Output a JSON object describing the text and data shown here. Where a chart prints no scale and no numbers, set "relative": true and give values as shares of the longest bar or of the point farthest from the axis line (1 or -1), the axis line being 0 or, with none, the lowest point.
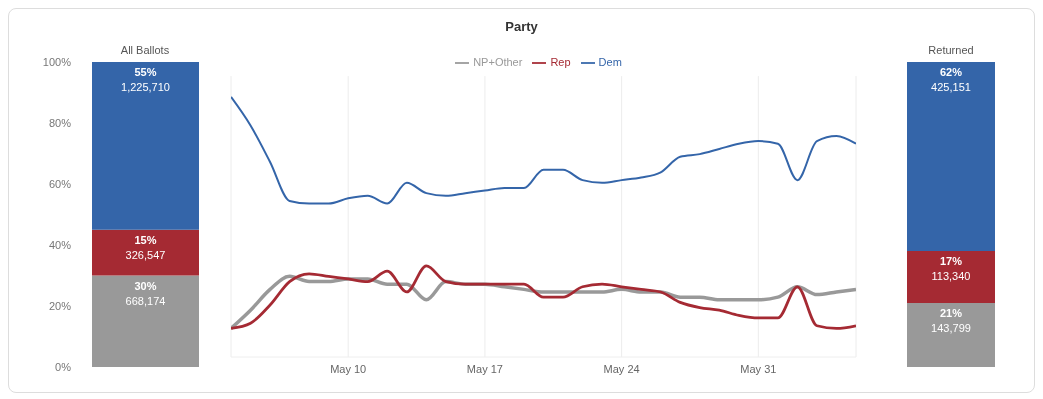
{
  "chart_data": [
    {
      "type": "bar",
      "stacked": true,
      "categories": [
        "All Ballots"
      ],
      "series": [
        {
          "color": "#999999",
          "values": [
            30
          ],
          "value_labels": [
            "30%\n668,174"
          ]
        },
        {
          "color": "#a52a33",
          "values": [
            15
          ],
          "value_labels": [
            "15%\n326,547"
          ]
        },
        {
          "color": "#3465a9",
          "values": [
            55
          ],
          "value_labels": [
            "55%\n1,225,710"
          ]
        }
      ],
      "ylim": [
        0,
        100
      ],
      "yticks": [
        {
          "value": 0,
          "label": "0%"
        },
        {
          "value": 20,
          "label": "20%"
        },
        {
          "value": 40,
          "label": "40%"
        },
        {
          "value": 60,
          "label": "60%"
        },
        {
          "value": 80,
          "label": "80%"
        },
        {
          "value": 100,
          "label": "100%"
        }
      ]
    },
    {
      "type": "line",
      "title": "Party",
      "relative": true,
      "tick_labels": "x",
      "legend": "top",
      "grid": "x",
      "x": [
        "--05-04",
        "--05-05",
        "--05-06",
        "--05-07",
        "--05-08",
        "--05-09",
        "--05-10",
        "--05-11",
        "--05-12",
        "--05-13",
        "--05-14",
        "--05-15",
        "--05-16",
        "--05-17",
        "--05-18",
        "--05-19",
        "--05-20",
        "--05-21",
        "--05-22",
        "--05-23",
        "--05-24",
        "--05-25",
        "--05-26",
        "--05-27",
        "--05-28",
        "--05-29",
        "--05-30",
        "--05-31",
        "--06-01",
        "--06-02",
        "--06-03",
        "--06-04",
        "--06-05"
      ],
      "xlim": [
        "--05-04",
        "--06-05"
      ],
      "xticks": [
        {
          "value": "--05-10",
          "label": "May 10"
        },
        {
          "value": "--05-17",
          "label": "May 17"
        },
        {
          "value": "--05-24",
          "label": "May 24"
        },
        {
          "value": "--05-31",
          "label": "May 31"
        }
      ],
      "series": [
        {
          "name": "NP+Other",
          "color": "#999999",
          "values": [
            0.11,
            0.18,
            0.26,
            0.31,
            0.29,
            0.29,
            0.3,
            0.3,
            0.28,
            0.28,
            0.22,
            0.29,
            0.28,
            0.28,
            0.27,
            0.26,
            0.25,
            0.25,
            0.25,
            0.25,
            0.26,
            0.25,
            0.25,
            0.23,
            0.23,
            0.22,
            0.22,
            0.22,
            0.23,
            0.27,
            0.24,
            0.25,
            0.26
          ]
        },
        {
          "name": "Rep",
          "color": "#a52a33",
          "values": [
            0.11,
            0.13,
            0.2,
            0.29,
            0.32,
            0.31,
            0.3,
            0.29,
            0.33,
            0.25,
            0.35,
            0.29,
            0.28,
            0.28,
            0.28,
            0.28,
            0.23,
            0.23,
            0.27,
            0.28,
            0.27,
            0.26,
            0.25,
            0.21,
            0.19,
            0.18,
            0.16,
            0.15,
            0.15,
            0.27,
            0.12,
            0.11,
            0.12
          ]
        },
        {
          "name": "Dem",
          "color": "#3465a9",
          "values": [
            1,
            0.89,
            0.75,
            0.6,
            0.59,
            0.59,
            0.61,
            0.62,
            0.59,
            0.67,
            0.63,
            0.62,
            0.63,
            0.64,
            0.65,
            0.65,
            0.72,
            0.72,
            0.68,
            0.67,
            0.68,
            0.69,
            0.71,
            0.77,
            0.78,
            0.8,
            0.82,
            0.83,
            0.82,
            0.68,
            0.83,
            0.85,
            0.82
          ]
        }
      ]
    },
    {
      "type": "bar",
      "stacked": true,
      "categories": [
        "Returned"
      ],
      "tick_labels": "x",
      "series": [
        {
          "color": "#999999",
          "values": [
            21
          ],
          "value_labels": [
            "21%\n143,799"
          ]
        },
        {
          "color": "#a52a33",
          "values": [
            17
          ],
          "value_labels": [
            "17%\n113,340"
          ]
        },
        {
          "color": "#3465a9",
          "values": [
            62
          ],
          "value_labels": [
            "62%\n425,151"
          ]
        }
      ],
      "ylim": [
        0,
        100
      ]
    }
  ]
}
